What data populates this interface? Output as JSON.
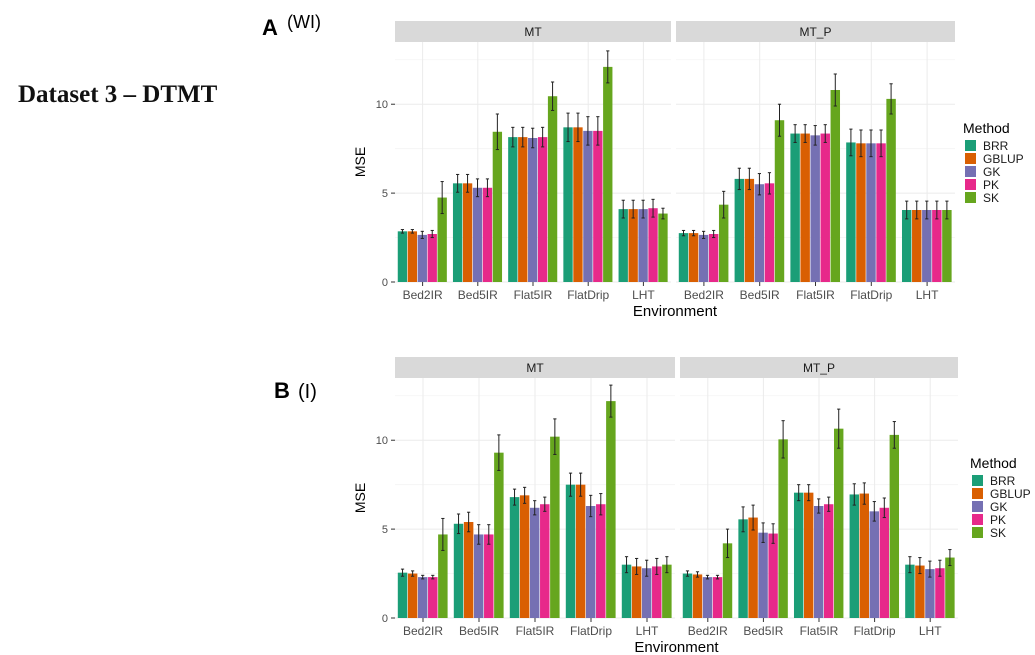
{
  "heading": "Dataset 3 – DTMT",
  "colors": {
    "BRR": "#1B9E77",
    "GBLUP": "#D95F02",
    "GK": "#7570B3",
    "PK": "#E7298A",
    "SK": "#66A61E",
    "strip_bg": "#D9D9D9",
    "grid": "#EBEBEB"
  },
  "chart_data": [
    {
      "panel_label": "A",
      "panel_sublabel": "(WI)",
      "type": "bar",
      "xlabel": "Environment",
      "ylabel": "MSE",
      "ylim": [
        0,
        13.5
      ],
      "yticks": [
        0,
        5,
        10
      ],
      "grid": true,
      "legend": {
        "title": "Method",
        "position": "right"
      },
      "methods": [
        "BRR",
        "GBLUP",
        "GK",
        "PK",
        "SK"
      ],
      "categories": [
        "Bed2IR",
        "Bed5IR",
        "Flat5IR",
        "FlatDrip",
        "LHT"
      ],
      "facets": [
        {
          "name": "MT",
          "values": [
            [
              2.85,
              2.85,
              2.65,
              2.7,
              4.75
            ],
            [
              5.55,
              5.55,
              5.3,
              5.3,
              8.45
            ],
            [
              8.15,
              8.15,
              8.1,
              8.15,
              10.45
            ],
            [
              8.7,
              8.7,
              8.5,
              8.5,
              12.1
            ],
            [
              4.1,
              4.1,
              4.1,
              4.15,
              3.85
            ]
          ],
          "errors": [
            [
              0.1,
              0.1,
              0.2,
              0.2,
              0.9
            ],
            [
              0.5,
              0.5,
              0.5,
              0.5,
              1.0
            ],
            [
              0.55,
              0.55,
              0.55,
              0.55,
              0.8
            ],
            [
              0.8,
              0.8,
              0.8,
              0.8,
              0.9
            ],
            [
              0.5,
              0.5,
              0.5,
              0.5,
              0.3
            ]
          ]
        },
        {
          "name": "MT_P",
          "values": [
            [
              2.75,
              2.75,
              2.65,
              2.7,
              4.35
            ],
            [
              5.8,
              5.8,
              5.5,
              5.55,
              9.1
            ],
            [
              8.35,
              8.35,
              8.25,
              8.35,
              10.8
            ],
            [
              7.85,
              7.8,
              7.8,
              7.8,
              10.3
            ],
            [
              4.05,
              4.05,
              4.05,
              4.05,
              4.05
            ]
          ],
          "errors": [
            [
              0.15,
              0.15,
              0.2,
              0.2,
              0.75
            ],
            [
              0.6,
              0.6,
              0.6,
              0.6,
              0.9
            ],
            [
              0.5,
              0.5,
              0.55,
              0.5,
              0.9
            ],
            [
              0.75,
              0.75,
              0.75,
              0.75,
              0.85
            ],
            [
              0.5,
              0.5,
              0.5,
              0.5,
              0.5
            ]
          ]
        }
      ]
    },
    {
      "panel_label": "B",
      "panel_sublabel": "(I)",
      "type": "bar",
      "xlabel": "Environment",
      "ylabel": "MSE",
      "ylim": [
        0,
        13.5
      ],
      "yticks": [
        0,
        5,
        10
      ],
      "grid": true,
      "legend": {
        "title": "Method",
        "position": "right"
      },
      "methods": [
        "BRR",
        "GBLUP",
        "GK",
        "PK",
        "SK"
      ],
      "categories": [
        "Bed2IR",
        "Bed5IR",
        "Flat5IR",
        "FlatDrip",
        "LHT"
      ],
      "facets": [
        {
          "name": "MT",
          "values": [
            [
              2.55,
              2.5,
              2.3,
              2.3,
              4.7
            ],
            [
              5.3,
              5.4,
              4.7,
              4.7,
              9.3
            ],
            [
              6.8,
              6.9,
              6.2,
              6.4,
              10.2
            ],
            [
              7.5,
              7.5,
              6.3,
              6.4,
              12.2
            ],
            [
              3.0,
              2.9,
              2.8,
              2.9,
              3.0
            ]
          ],
          "errors": [
            [
              0.2,
              0.15,
              0.1,
              0.1,
              0.9
            ],
            [
              0.55,
              0.55,
              0.55,
              0.55,
              1.0
            ],
            [
              0.45,
              0.45,
              0.4,
              0.4,
              1.0
            ],
            [
              0.65,
              0.65,
              0.6,
              0.6,
              0.9
            ],
            [
              0.45,
              0.45,
              0.45,
              0.45,
              0.45
            ]
          ]
        },
        {
          "name": "MT_P",
          "values": [
            [
              2.5,
              2.45,
              2.3,
              2.3,
              4.2
            ],
            [
              5.55,
              5.65,
              4.8,
              4.75,
              10.05
            ],
            [
              7.05,
              7.05,
              6.3,
              6.4,
              10.65
            ],
            [
              6.95,
              7.0,
              6.0,
              6.2,
              10.3
            ],
            [
              3.0,
              2.95,
              2.75,
              2.8,
              3.4
            ]
          ],
          "errors": [
            [
              0.15,
              0.15,
              0.1,
              0.1,
              0.8
            ],
            [
              0.7,
              0.7,
              0.55,
              0.55,
              1.05
            ],
            [
              0.45,
              0.45,
              0.4,
              0.4,
              1.1
            ],
            [
              0.6,
              0.6,
              0.55,
              0.55,
              0.75
            ],
            [
              0.45,
              0.45,
              0.45,
              0.45,
              0.45
            ]
          ]
        }
      ]
    }
  ]
}
